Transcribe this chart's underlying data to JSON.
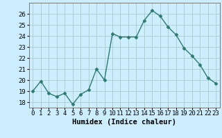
{
  "x": [
    0,
    1,
    2,
    3,
    4,
    5,
    6,
    7,
    8,
    9,
    10,
    11,
    12,
    13,
    14,
    15,
    16,
    17,
    18,
    19,
    20,
    21,
    22,
    23
  ],
  "y": [
    19.0,
    19.9,
    18.8,
    18.5,
    18.8,
    17.8,
    18.7,
    19.1,
    21.0,
    20.0,
    24.2,
    23.9,
    23.9,
    23.9,
    25.4,
    26.3,
    25.8,
    24.8,
    24.1,
    22.9,
    22.2,
    21.4,
    20.2,
    19.7
  ],
  "line_color": "#2d7a6e",
  "marker": "D",
  "marker_size": 2.5,
  "bg_color": "#cceeff",
  "grid_color": "#aacccc",
  "xlabel": "Humidex (Indice chaleur)",
  "ylim": [
    17.5,
    27.0
  ],
  "xlim": [
    -0.5,
    23.5
  ],
  "yticks": [
    18,
    19,
    20,
    21,
    22,
    23,
    24,
    25,
    26
  ],
  "xtick_labels": [
    "0",
    "1",
    "2",
    "3",
    "4",
    "5",
    "6",
    "7",
    "8",
    "9",
    "10",
    "11",
    "12",
    "13",
    "14",
    "15",
    "16",
    "17",
    "18",
    "19",
    "20",
    "21",
    "22",
    "23"
  ],
  "xlabel_fontsize": 7.5,
  "tick_fontsize": 6.5,
  "line_width": 1.0,
  "font_family": "monospace"
}
